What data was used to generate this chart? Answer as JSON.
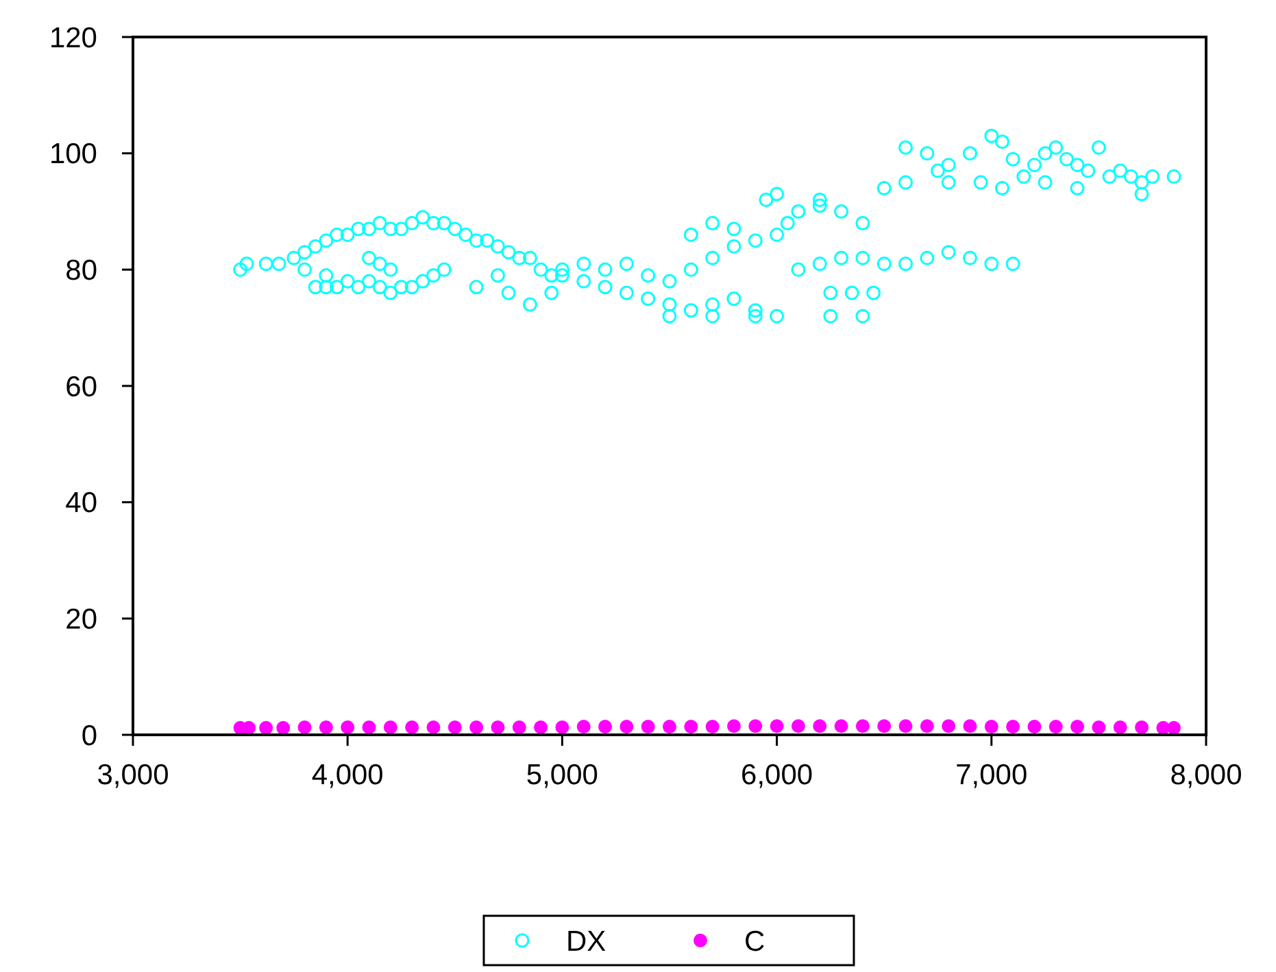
{
  "chart_data": {
    "type": "scatter",
    "xlim": [
      3000,
      8000
    ],
    "xticks": [
      {
        "value": 3000,
        "label": "3,000"
      },
      {
        "value": 4000,
        "label": "4,000"
      },
      {
        "value": 5000,
        "label": "5,000"
      },
      {
        "value": 6000,
        "label": "6,000"
      },
      {
        "value": 7000,
        "label": "7,000"
      },
      {
        "value": 8000,
        "label": "8,000"
      }
    ],
    "ylim": [
      0,
      120
    ],
    "yticks": [
      0,
      20,
      40,
      60,
      80,
      100,
      120
    ],
    "grid": false,
    "legend": "bottom",
    "marker": "circle",
    "series": [
      {
        "name": "DX",
        "color": "#00ffff",
        "x": [
          3500,
          3530,
          3620,
          3680,
          3750,
          3800,
          3850,
          3900,
          3950,
          4000,
          4050,
          4100,
          4150,
          4200,
          4250,
          4300,
          4350,
          4400,
          4450,
          4500,
          4550,
          4600,
          4650,
          4700,
          4750,
          4800,
          4850,
          4900,
          4950,
          5000,
          3850,
          3900,
          3950,
          4000,
          4050,
          4100,
          4150,
          4200,
          4250,
          4300,
          4350,
          4400,
          4450,
          4200,
          4150,
          4100,
          3900,
          3800,
          4600,
          4700,
          4850,
          4950,
          4750,
          5000,
          5100,
          5200,
          5300,
          5400,
          5500,
          5600,
          5700,
          5800,
          5900,
          6000,
          5100,
          5200,
          5300,
          5400,
          5500,
          5600,
          5700,
          5800,
          5900,
          6000,
          6050,
          6100,
          6200,
          6300,
          6400,
          5600,
          5700,
          5800,
          5950,
          6000,
          6200,
          6250,
          6350,
          6450,
          6250,
          6400,
          6100,
          6200,
          6300,
          6400,
          6500,
          6600,
          6700,
          6800,
          6900,
          7000,
          7100,
          5500,
          5700,
          5900,
          6500,
          6600,
          6600,
          6700,
          6750,
          6800,
          6900,
          7000,
          7050,
          6950,
          7100,
          7150,
          7200,
          7250,
          7300,
          7350,
          7400,
          7450,
          7500,
          7550,
          7600,
          7650,
          7700,
          7750,
          7850,
          7250,
          7400,
          6800,
          7050,
          7700
        ],
        "values": [
          80,
          81,
          81,
          81,
          82,
          83,
          84,
          85,
          86,
          86,
          87,
          87,
          88,
          87,
          87,
          88,
          89,
          88,
          88,
          87,
          86,
          85,
          85,
          84,
          83,
          82,
          82,
          80,
          79,
          80,
          77,
          77,
          77,
          78,
          77,
          78,
          77,
          76,
          77,
          77,
          78,
          79,
          80,
          80,
          81,
          82,
          79,
          80,
          77,
          79,
          74,
          76,
          76,
          79,
          78,
          77,
          76,
          75,
          74,
          73,
          74,
          75,
          73,
          72,
          81,
          80,
          81,
          79,
          78,
          80,
          82,
          84,
          85,
          86,
          88,
          90,
          91,
          90,
          88,
          86,
          88,
          87,
          92,
          93,
          92,
          76,
          76,
          76,
          72,
          72,
          80,
          81,
          82,
          82,
          81,
          81,
          82,
          83,
          82,
          81,
          81,
          72,
          72,
          72,
          94,
          95,
          101,
          100,
          97,
          98,
          100,
          103,
          102,
          95,
          99,
          96,
          98,
          100,
          101,
          99,
          98,
          97,
          101,
          96,
          97,
          96,
          95,
          96,
          96,
          95,
          94,
          95,
          94,
          93
        ]
      },
      {
        "name": "C",
        "color": "#ff00ff",
        "x": [
          3500,
          3540,
          3620,
          3700,
          3800,
          3900,
          4000,
          4100,
          4200,
          4300,
          4400,
          4500,
          4600,
          4700,
          4800,
          4900,
          5000,
          5100,
          5200,
          5300,
          5400,
          5500,
          5600,
          5700,
          5800,
          5900,
          6000,
          6100,
          6200,
          6300,
          6400,
          6500,
          6600,
          6700,
          6800,
          6900,
          7000,
          7100,
          7200,
          7300,
          7400,
          7500,
          7600,
          7700,
          7800,
          7850
        ],
        "values": [
          1.2,
          1.2,
          1.2,
          1.2,
          1.3,
          1.3,
          1.3,
          1.3,
          1.3,
          1.3,
          1.3,
          1.3,
          1.3,
          1.3,
          1.3,
          1.3,
          1.3,
          1.4,
          1.4,
          1.4,
          1.4,
          1.4,
          1.4,
          1.4,
          1.5,
          1.5,
          1.5,
          1.5,
          1.5,
          1.5,
          1.5,
          1.5,
          1.5,
          1.5,
          1.5,
          1.5,
          1.4,
          1.4,
          1.4,
          1.4,
          1.4,
          1.3,
          1.3,
          1.3,
          1.2,
          1.2
        ]
      }
    ]
  }
}
